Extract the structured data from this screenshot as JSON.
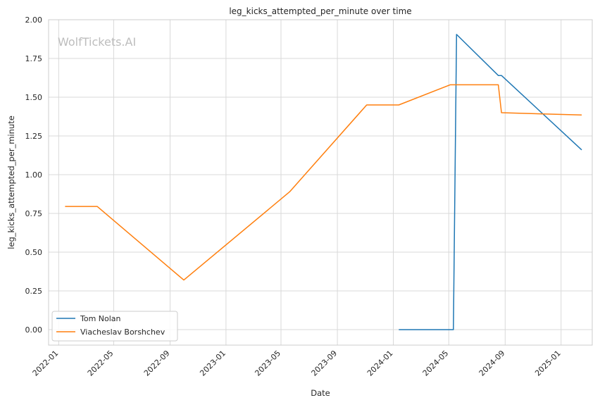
{
  "chart_data": {
    "type": "line",
    "title": "leg_kicks_attempted_per_minute over time",
    "xlabel": "Date",
    "ylabel": "leg_kicks_attempted_per_minute",
    "watermark": "WolfTickets.AI",
    "x_type": "date",
    "xlim": [
      "2021-12-10",
      "2025-03-10"
    ],
    "ylim": [
      -0.1,
      2.0
    ],
    "x_ticks": [
      "2022-01",
      "2022-05",
      "2022-09",
      "2023-01",
      "2023-05",
      "2023-09",
      "2024-01",
      "2024-05",
      "2024-09",
      "2025-01"
    ],
    "y_ticks": [
      "0.00",
      "0.25",
      "0.50",
      "0.75",
      "1.00",
      "1.25",
      "1.50",
      "1.75",
      "2.00"
    ],
    "grid": true,
    "legend_position": "lower-left",
    "series": [
      {
        "name": "Tom Nolan",
        "color": "#1f77b4",
        "points": [
          {
            "x": "2024-01-13",
            "y": 0.0
          },
          {
            "x": "2024-05-11",
            "y": 0.0
          },
          {
            "x": "2024-05-18",
            "y": 1.905
          },
          {
            "x": "2024-08-17",
            "y": 1.64
          },
          {
            "x": "2024-08-24",
            "y": 1.64
          },
          {
            "x": "2025-02-15",
            "y": 1.16
          }
        ]
      },
      {
        "name": "Viacheslav Borshchev",
        "color": "#ff7f0e",
        "points": [
          {
            "x": "2022-01-15",
            "y": 0.795
          },
          {
            "x": "2022-03-26",
            "y": 0.795
          },
          {
            "x": "2022-10-01",
            "y": 0.32
          },
          {
            "x": "2023-05-20",
            "y": 0.89
          },
          {
            "x": "2023-11-04",
            "y": 1.45
          },
          {
            "x": "2024-01-13",
            "y": 1.45
          },
          {
            "x": "2024-05-04",
            "y": 1.58
          },
          {
            "x": "2024-08-17",
            "y": 1.58
          },
          {
            "x": "2024-08-24",
            "y": 1.4
          },
          {
            "x": "2025-02-15",
            "y": 1.385
          }
        ]
      }
    ]
  }
}
